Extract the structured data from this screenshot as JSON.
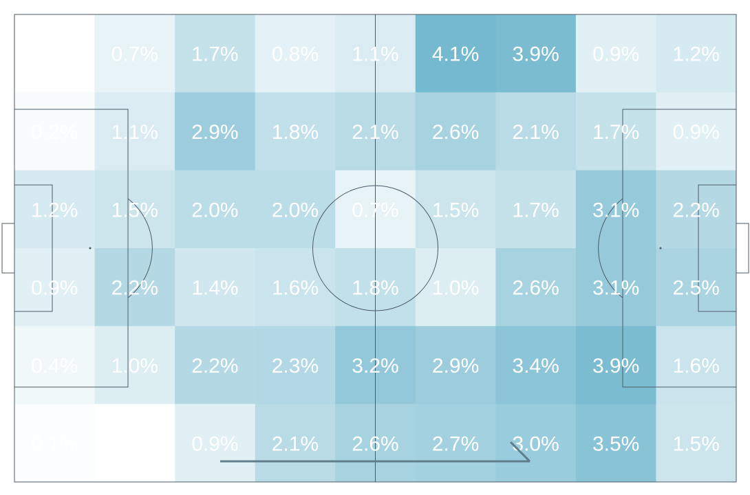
{
  "chart_data": {
    "type": "heatmap",
    "rows": 6,
    "cols": 9,
    "unit": "%",
    "values": [
      [
        0.0,
        0.7,
        1.7,
        0.8,
        1.1,
        4.1,
        3.9,
        0.9,
        1.2
      ],
      [
        0.2,
        1.1,
        2.9,
        1.8,
        2.1,
        2.6,
        2.1,
        1.7,
        0.9
      ],
      [
        1.2,
        1.5,
        2.0,
        2.0,
        0.7,
        1.5,
        1.7,
        3.1,
        2.2
      ],
      [
        0.9,
        2.2,
        1.4,
        1.6,
        1.8,
        1.0,
        2.6,
        3.1,
        2.5
      ],
      [
        0.4,
        1.0,
        2.2,
        2.3,
        3.2,
        2.9,
        3.4,
        3.9,
        1.6
      ],
      [
        0.1,
        0.0,
        0.9,
        2.1,
        2.6,
        2.7,
        3.0,
        3.5,
        1.5
      ]
    ],
    "labels": [
      [
        "",
        "0.7%",
        "1.7%",
        "0.8%",
        "1.1%",
        "4.1%",
        "3.9%",
        "0.9%",
        "1.2%"
      ],
      [
        "0.2%",
        "1.1%",
        "2.9%",
        "1.8%",
        "2.1%",
        "2.6%",
        "2.1%",
        "1.7%",
        "0.9%"
      ],
      [
        "1.2%",
        "1.5%",
        "2.0%",
        "2.0%",
        "0.7%",
        "1.5%",
        "1.7%",
        "3.1%",
        "2.2%"
      ],
      [
        "0.9%",
        "2.2%",
        "1.4%",
        "1.6%",
        "1.8%",
        "1.0%",
        "2.6%",
        "3.1%",
        "2.5%"
      ],
      [
        "0.4%",
        "1.0%",
        "2.2%",
        "2.3%",
        "3.2%",
        "2.9%",
        "3.4%",
        "3.9%",
        "1.6%"
      ],
      [
        "0.1%",
        "",
        "0.9%",
        "2.1%",
        "2.6%",
        "2.7%",
        "3.0%",
        "3.5%",
        "1.5%"
      ]
    ],
    "color_max": "#74b9cf",
    "color_min": "#ffffff",
    "vmax": 4.1
  }
}
